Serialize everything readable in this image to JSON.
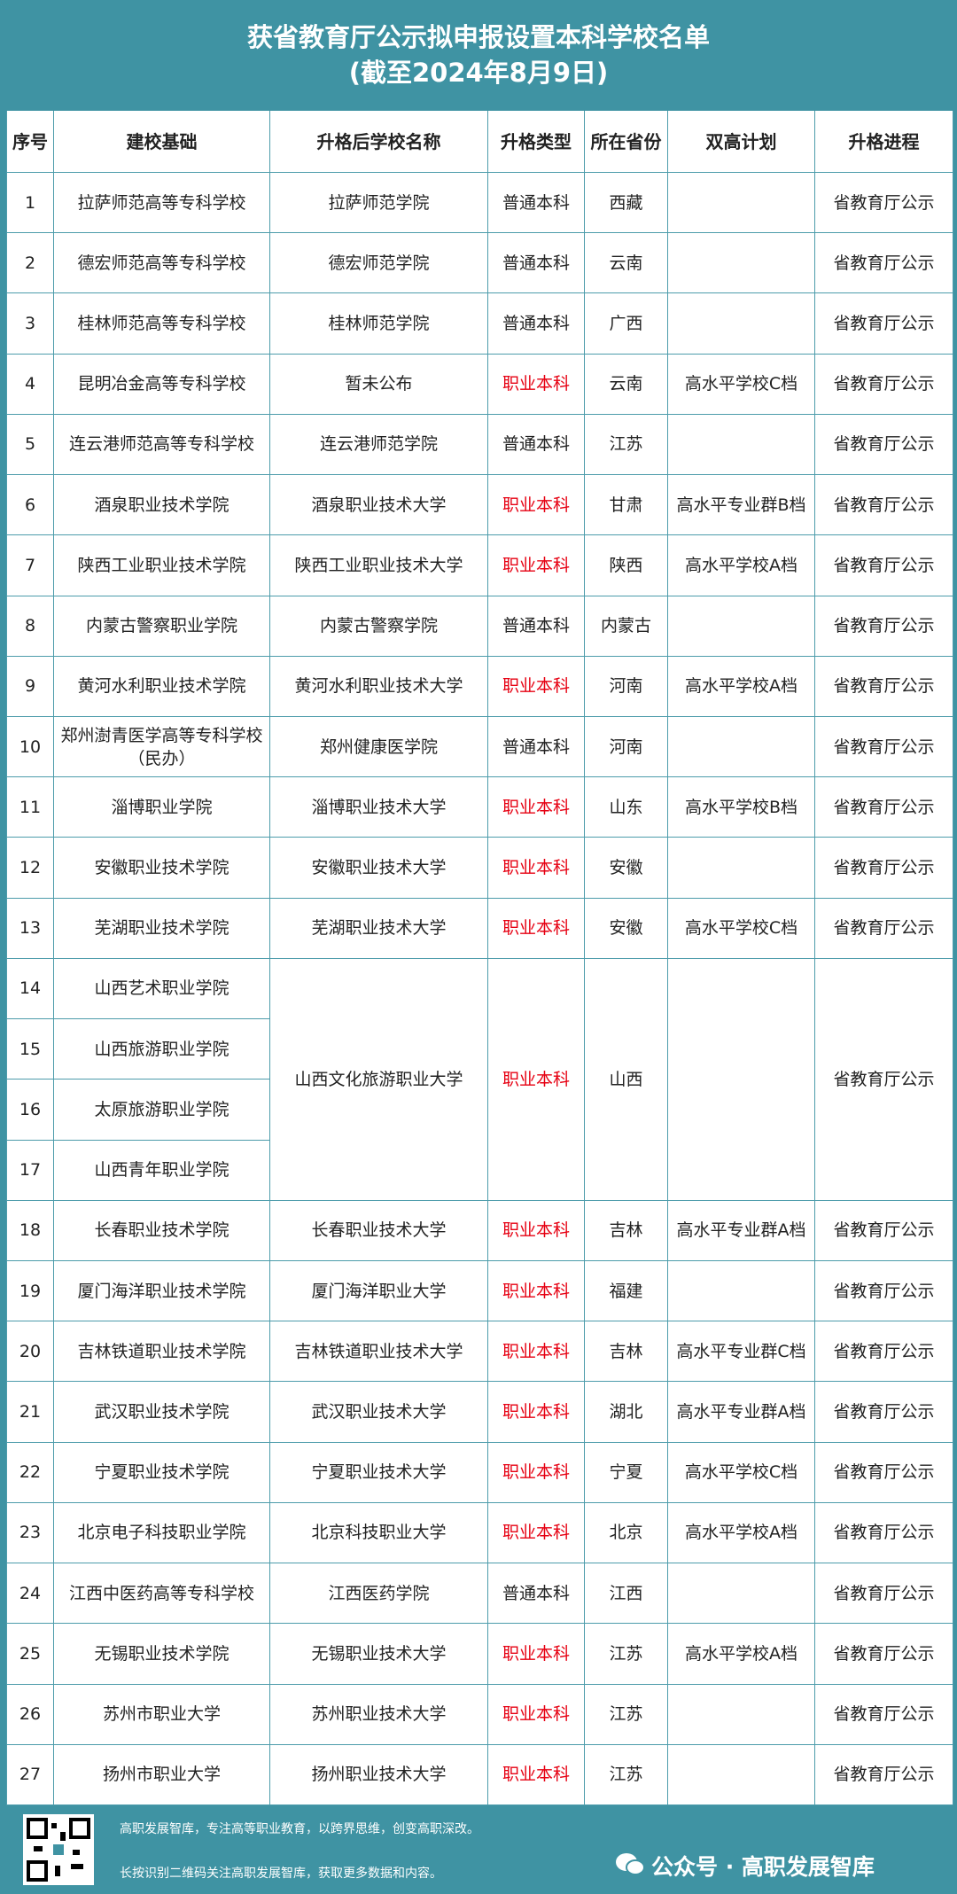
{
  "header": {
    "title": "获省教育厅公示拟申报设置本科学校名单",
    "subtitle": "(截至2024年8月9日)"
  },
  "table": {
    "columns": [
      "序号",
      "建校基础",
      "升格后学校名称",
      "升格类型",
      "所在省份",
      "双高计划",
      "升格进程"
    ],
    "type_colors": {
      "职业本科": "#e60012",
      "普通本科": "#222222"
    },
    "rows": [
      [
        "1",
        "拉萨师范高等专科学校",
        "拉萨师范学院",
        "普通本科",
        "西藏",
        null,
        "省教育厅公示"
      ],
      [
        "2",
        "德宏师范高等专科学校",
        "德宏师范学院",
        "普通本科",
        "云南",
        null,
        "省教育厅公示"
      ],
      [
        "3",
        "桂林师范高等专科学校",
        "桂林师范学院",
        "普通本科",
        "广西",
        null,
        "省教育厅公示"
      ],
      [
        "4",
        "昆明冶金高等专科学校",
        "暂未公布",
        "职业本科",
        "云南",
        "高水平学校C档",
        "省教育厅公示"
      ],
      [
        "5",
        "连云港师范高等专科学校",
        "连云港师范学院",
        "普通本科",
        "江苏",
        null,
        "省教育厅公示"
      ],
      [
        "6",
        "酒泉职业技术学院",
        "酒泉职业技术大学",
        "职业本科",
        "甘肃",
        "高水平专业群B档",
        "省教育厅公示"
      ],
      [
        "7",
        "陕西工业职业技术学院",
        "陕西工业职业技术大学",
        "职业本科",
        "陕西",
        "高水平学校A档",
        "省教育厅公示"
      ],
      [
        "8",
        "内蒙古警察职业学院",
        "内蒙古警察学院",
        "普通本科",
        "内蒙古",
        null,
        "省教育厅公示"
      ],
      [
        "9",
        "黄河水利职业技术学院",
        "黄河水利职业技术大学",
        "职业本科",
        "河南",
        "高水平学校A档",
        "省教育厅公示"
      ],
      [
        "10",
        "郑州澍青医学高等专科学校（民办）",
        "郑州健康医学院",
        "普通本科",
        "河南",
        null,
        "省教育厅公示"
      ],
      [
        "11",
        "淄博职业学院",
        "淄博职业技术大学",
        "职业本科",
        "山东",
        "高水平学校B档",
        "省教育厅公示"
      ],
      [
        "12",
        "安徽职业技术学院",
        "安徽职业技术大学",
        "职业本科",
        "安徽",
        null,
        "省教育厅公示"
      ],
      [
        "13",
        "芜湖职业技术学院",
        "芜湖职业技术大学",
        "职业本科",
        "安徽",
        "高水平学校C档",
        "省教育厅公示"
      ],
      [
        "14",
        "山西艺术职业学院",
        "山西文化旅游职业大学",
        "职业本科",
        "山西",
        null,
        "省教育厅公示"
      ],
      [
        "15",
        "山西旅游职业学院"
      ],
      [
        "16",
        "太原旅游职业学院"
      ],
      [
        "17",
        "山西青年职业学院"
      ],
      [
        "18",
        "长春职业技术学院",
        "长春职业技术大学",
        "职业本科",
        "吉林",
        "高水平专业群A档",
        "省教育厅公示"
      ],
      [
        "19",
        "厦门海洋职业技术学院",
        "厦门海洋职业大学",
        "职业本科",
        "福建",
        null,
        "省教育厅公示"
      ],
      [
        "20",
        "吉林铁道职业技术学院",
        "吉林铁道职业技术大学",
        "职业本科",
        "吉林",
        "高水平专业群C档",
        "省教育厅公示"
      ],
      [
        "21",
        "武汉职业技术学院",
        "武汉职业技术大学",
        "职业本科",
        "湖北",
        "高水平专业群A档",
        "省教育厅公示"
      ],
      [
        "22",
        "宁夏职业技术学院",
        "宁夏职业技术大学",
        "职业本科",
        "宁夏",
        "高水平学校C档",
        "省教育厅公示"
      ],
      [
        "23",
        "北京电子科技职业学院",
        "北京科技职业大学",
        "职业本科",
        "北京",
        "高水平学校A档",
        "省教育厅公示"
      ],
      [
        "24",
        "江西中医药高等专科学校",
        "江西医药学院",
        "普通本科",
        "江西",
        null,
        "省教育厅公示"
      ],
      [
        "25",
        "无锡职业技术学院",
        "无锡职业技术大学",
        "职业本科",
        "江苏",
        "高水平学校A档",
        "省教育厅公示"
      ],
      [
        "26",
        "苏州市职业大学",
        "苏州职业技术大学",
        "职业本科",
        "江苏",
        null,
        "省教育厅公示"
      ],
      [
        "27",
        "扬州市职业大学",
        "扬州职业技术大学",
        "职业本科",
        "江苏",
        null,
        "省教育厅公示"
      ]
    ]
  },
  "footer": {
    "line1": "高职发展智库，专注高等职业教育，以跨界思维，创变高职深改。",
    "line2": "长按识别二维码关注高职发展智库，获取更多数据和内容。",
    "account": "公众号 · 高职发展智库"
  }
}
